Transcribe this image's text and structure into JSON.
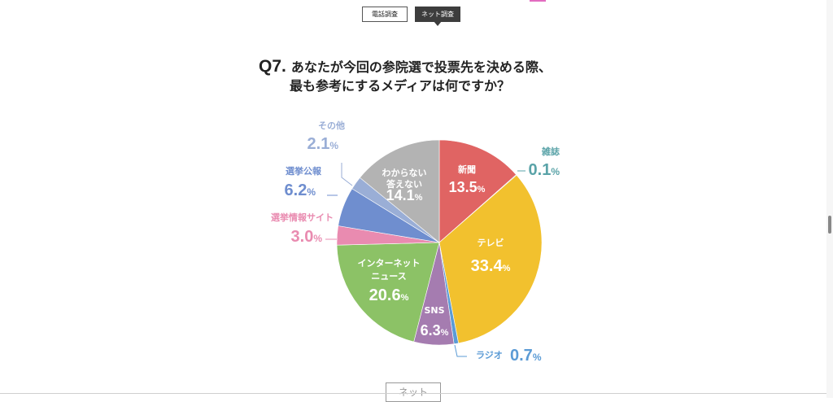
{
  "tabs": [
    {
      "label": "電話調査",
      "active": false
    },
    {
      "label": "ネット調査",
      "active": true
    }
  ],
  "question": {
    "number": "Q7.",
    "line1": "あなたが今回の参院選で投票先を決める際、",
    "line2": "最も参考にするメディアは何ですか？"
  },
  "bottom_button": "ネット",
  "chart_data": {
    "type": "pie",
    "unit": "%",
    "slices": [
      {
        "label": "新聞",
        "value": 13.5,
        "color": "#e06463",
        "text": "13.5"
      },
      {
        "label": "雑誌",
        "value": 0.1,
        "color": "#5aa3a8",
        "text": "0.1"
      },
      {
        "label": "テレビ",
        "value": 33.4,
        "color": "#f2c12e",
        "text": "33.4"
      },
      {
        "label": "ラジオ",
        "value": 0.7,
        "color": "#5b9bd5",
        "text": "0.7"
      },
      {
        "label": "SNS",
        "value": 6.3,
        "color": "#a57cb0",
        "text": "6.3"
      },
      {
        "label": "インターネットニュース",
        "value": 20.6,
        "color": "#8cc266",
        "text": "20.6"
      },
      {
        "label": "選挙情報サイト",
        "value": 3.0,
        "color": "#e98bb0",
        "text": "3.0"
      },
      {
        "label": "選挙公報",
        "value": 6.2,
        "color": "#6f8ecf",
        "text": "6.2"
      },
      {
        "label": "その他",
        "value": 2.1,
        "color": "#9aaed6",
        "text": "2.1"
      },
      {
        "label": "わからない答えない",
        "value": 14.1,
        "color": "#b3b3b3",
        "text": "14.1"
      }
    ]
  }
}
